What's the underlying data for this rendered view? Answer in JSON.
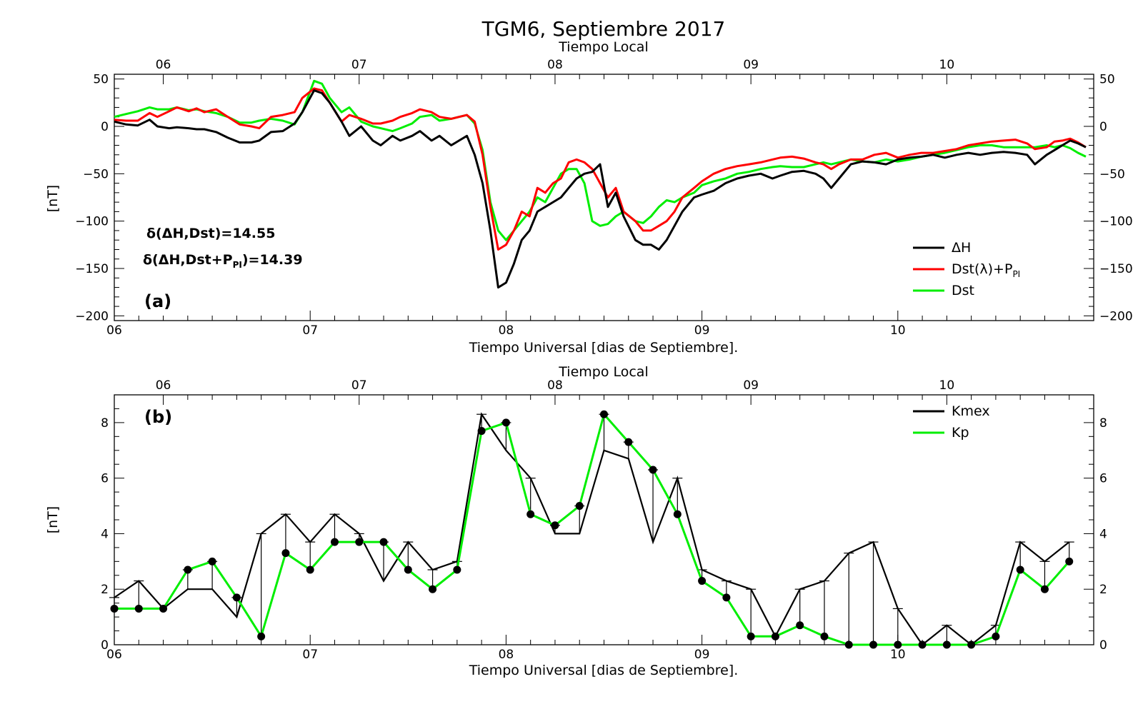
{
  "title": "TGM6, Septiembre 2017",
  "top_axis_label": "Tiempo Local",
  "bottom_axis_label": "Tiempo Universal [dias de Septiembre].",
  "ylabel": "[nT]",
  "x_ticks": [
    "06",
    "07",
    "08",
    "09",
    "10"
  ],
  "chart_data": [
    {
      "type": "line",
      "panel_label": "(a)",
      "ylabel": "[nT]",
      "xlabel": "Tiempo Universal [dias de Septiembre].",
      "top_xlabel": "Tiempo Local",
      "xlim": [
        6.0,
        11.0
      ],
      "ylim": [
        -205,
        55
      ],
      "y_ticks": [
        50,
        0,
        -50,
        -100,
        -150,
        -200
      ],
      "y_tick_labels": [
        "50",
        "0",
        "−50",
        "−100",
        "−150",
        "−200"
      ],
      "annotations": [
        "δ(ΔH,Dst)=14.55",
        "δ(ΔH,Dst+P",
        "PI",
        ")=14.39"
      ],
      "legend_position": "bottom-right",
      "series": [
        {
          "name": "ΔH",
          "color": "#000000",
          "x": [
            6.0,
            6.06,
            6.12,
            6.18,
            6.22,
            6.28,
            6.32,
            6.38,
            6.42,
            6.46,
            6.52,
            6.58,
            6.64,
            6.7,
            6.74,
            6.8,
            6.86,
            6.92,
            6.96,
            7.02,
            7.06,
            7.1,
            7.16,
            7.2,
            7.26,
            7.32,
            7.36,
            7.42,
            7.46,
            7.52,
            7.56,
            7.62,
            7.66,
            7.72,
            7.76,
            7.8,
            7.84,
            7.88,
            7.92,
            7.96,
            8.0,
            8.04,
            8.08,
            8.12,
            8.16,
            8.2,
            8.24,
            8.28,
            8.32,
            8.36,
            8.4,
            8.44,
            8.48,
            8.52,
            8.56,
            8.6,
            8.66,
            8.7,
            8.74,
            8.78,
            8.82,
            8.86,
            8.9,
            8.96,
            9.0,
            9.06,
            9.12,
            9.18,
            9.24,
            9.3,
            9.36,
            9.4,
            9.46,
            9.52,
            9.58,
            9.62,
            9.66,
            9.7,
            9.76,
            9.82,
            9.88,
            9.94,
            10.0,
            10.06,
            10.12,
            10.18,
            10.24,
            10.3,
            10.36,
            10.42,
            10.48,
            10.54,
            10.6,
            10.66,
            10.7,
            10.76,
            10.8,
            10.84,
            10.88,
            10.92,
            10.96
          ],
          "values": [
            5,
            2,
            1,
            7,
            0,
            -2,
            -1,
            -2,
            -3,
            -3,
            -6,
            -12,
            -17,
            -17,
            -15,
            -6,
            -5,
            3,
            15,
            38,
            35,
            25,
            5,
            -10,
            0,
            -15,
            -20,
            -10,
            -15,
            -10,
            -5,
            -15,
            -10,
            -20,
            -15,
            -10,
            -30,
            -60,
            -110,
            -170,
            -165,
            -145,
            -120,
            -110,
            -90,
            -85,
            -80,
            -75,
            -65,
            -55,
            -50,
            -48,
            -40,
            -85,
            -70,
            -95,
            -120,
            -125,
            -125,
            -130,
            -120,
            -105,
            -90,
            -75,
            -72,
            -68,
            -60,
            -55,
            -52,
            -50,
            -55,
            -52,
            -48,
            -47,
            -50,
            -55,
            -65,
            -55,
            -40,
            -37,
            -38,
            -40,
            -35,
            -33,
            -32,
            -30,
            -33,
            -30,
            -28,
            -30,
            -28,
            -27,
            -28,
            -30,
            -40,
            -30,
            -25,
            -20,
            -15,
            -18,
            -22
          ]
        },
        {
          "name": "Dst(λ)+P",
          "name_subscript": "PI",
          "color": "#ff0000",
          "x": [
            6.0,
            6.06,
            6.12,
            6.18,
            6.22,
            6.28,
            6.32,
            6.38,
            6.42,
            6.46,
            6.52,
            6.58,
            6.64,
            6.7,
            6.74,
            6.8,
            6.86,
            6.92,
            6.96,
            7.02,
            7.06,
            7.1,
            7.16,
            7.2,
            7.26,
            7.32,
            7.36,
            7.42,
            7.46,
            7.52,
            7.56,
            7.62,
            7.66,
            7.72,
            7.76,
            7.8,
            7.84,
            7.88,
            7.92,
            7.96,
            8.0,
            8.04,
            8.08,
            8.12,
            8.16,
            8.2,
            8.24,
            8.28,
            8.32,
            8.36,
            8.4,
            8.44,
            8.48,
            8.52,
            8.56,
            8.6,
            8.66,
            8.7,
            8.74,
            8.78,
            8.82,
            8.86,
            8.9,
            8.96,
            9.0,
            9.06,
            9.12,
            9.18,
            9.24,
            9.3,
            9.36,
            9.4,
            9.46,
            9.52,
            9.58,
            9.62,
            9.66,
            9.7,
            9.76,
            9.82,
            9.88,
            9.94,
            10.0,
            10.06,
            10.12,
            10.18,
            10.24,
            10.3,
            10.36,
            10.42,
            10.48,
            10.54,
            10.6,
            10.66,
            10.7,
            10.76,
            10.8,
            10.84,
            10.88,
            10.92,
            10.96
          ],
          "values": [
            7,
            6,
            6,
            14,
            10,
            16,
            20,
            16,
            19,
            15,
            18,
            10,
            2,
            0,
            -2,
            10,
            12,
            15,
            30,
            40,
            38,
            25,
            5,
            12,
            8,
            3,
            3,
            6,
            10,
            14,
            18,
            15,
            10,
            8,
            10,
            12,
            5,
            -30,
            -85,
            -130,
            -125,
            -110,
            -90,
            -95,
            -65,
            -70,
            -60,
            -55,
            -38,
            -35,
            -38,
            -45,
            -60,
            -75,
            -65,
            -90,
            -100,
            -110,
            -110,
            -105,
            -100,
            -90,
            -75,
            -65,
            -58,
            -50,
            -45,
            -42,
            -40,
            -38,
            -35,
            -33,
            -32,
            -34,
            -38,
            -40,
            -45,
            -40,
            -35,
            -35,
            -30,
            -28,
            -33,
            -30,
            -28,
            -28,
            -26,
            -24,
            -20,
            -18,
            -16,
            -15,
            -14,
            -18,
            -24,
            -22,
            -16,
            -15,
            -13,
            -17,
            -22
          ]
        },
        {
          "name": "Dst",
          "color": "#00ee00",
          "x": [
            6.0,
            6.06,
            6.12,
            6.18,
            6.22,
            6.28,
            6.32,
            6.38,
            6.42,
            6.46,
            6.52,
            6.58,
            6.64,
            6.7,
            6.74,
            6.8,
            6.86,
            6.92,
            6.96,
            7.02,
            7.06,
            7.1,
            7.16,
            7.2,
            7.26,
            7.32,
            7.36,
            7.42,
            7.46,
            7.52,
            7.56,
            7.62,
            7.66,
            7.72,
            7.76,
            7.8,
            7.84,
            7.88,
            7.92,
            7.96,
            8.0,
            8.04,
            8.08,
            8.12,
            8.16,
            8.2,
            8.24,
            8.28,
            8.32,
            8.36,
            8.4,
            8.44,
            8.48,
            8.52,
            8.56,
            8.6,
            8.66,
            8.7,
            8.74,
            8.78,
            8.82,
            8.86,
            8.9,
            8.96,
            9.0,
            9.06,
            9.12,
            9.18,
            9.24,
            9.3,
            9.36,
            9.4,
            9.46,
            9.52,
            9.58,
            9.62,
            9.66,
            9.7,
            9.76,
            9.82,
            9.88,
            9.94,
            10.0,
            10.06,
            10.12,
            10.18,
            10.24,
            10.3,
            10.36,
            10.42,
            10.48,
            10.54,
            10.6,
            10.66,
            10.7,
            10.76,
            10.8,
            10.84,
            10.88,
            10.92,
            10.96
          ],
          "values": [
            10,
            13,
            16,
            20,
            18,
            18,
            20,
            17,
            18,
            16,
            14,
            10,
            4,
            4,
            6,
            8,
            6,
            2,
            15,
            48,
            45,
            30,
            15,
            20,
            5,
            0,
            -2,
            -5,
            -2,
            3,
            10,
            12,
            6,
            8,
            10,
            12,
            3,
            -25,
            -80,
            -110,
            -120,
            -110,
            -100,
            -90,
            -75,
            -80,
            -65,
            -50,
            -45,
            -45,
            -60,
            -100,
            -105,
            -103,
            -95,
            -90,
            -100,
            -102,
            -95,
            -85,
            -78,
            -80,
            -75,
            -70,
            -62,
            -58,
            -55,
            -50,
            -48,
            -45,
            -43,
            -42,
            -43,
            -43,
            -40,
            -38,
            -40,
            -38,
            -35,
            -37,
            -38,
            -35,
            -37,
            -35,
            -32,
            -30,
            -28,
            -25,
            -22,
            -20,
            -20,
            -22,
            -22,
            -22,
            -22,
            -20,
            -22,
            -20,
            -23,
            -28,
            -32
          ]
        }
      ]
    },
    {
      "type": "line",
      "panel_label": "(b)",
      "ylabel": "[nT]",
      "xlabel": "Tiempo Universal [dias de Septiembre].",
      "top_xlabel": "Tiempo Local",
      "xlim": [
        6.0,
        11.0
      ],
      "ylim": [
        0,
        9
      ],
      "y_ticks": [
        0,
        2,
        4,
        6,
        8
      ],
      "y_tick_labels": [
        "0",
        "2",
        "4",
        "6",
        "8"
      ],
      "legend_position": "top-right",
      "series": [
        {
          "name": "Kmex",
          "color": "#000000",
          "x": [
            6.0,
            6.125,
            6.25,
            6.375,
            6.5,
            6.625,
            6.75,
            6.875,
            7.0,
            7.125,
            7.25,
            7.375,
            7.5,
            7.625,
            7.75,
            7.875,
            8.0,
            8.125,
            8.25,
            8.375,
            8.5,
            8.625,
            8.75,
            8.875,
            9.0,
            9.125,
            9.25,
            9.375,
            9.5,
            9.625,
            9.75,
            9.875,
            10.0,
            10.125,
            10.25,
            10.375,
            10.5,
            10.625,
            10.75,
            10.875
          ],
          "values": [
            1.7,
            2.3,
            1.3,
            2.0,
            2.0,
            1.0,
            4.0,
            4.7,
            3.7,
            4.7,
            4.0,
            2.3,
            3.7,
            2.7,
            3.0,
            8.3,
            7.0,
            6.0,
            4.0,
            4.0,
            7.0,
            6.7,
            3.7,
            6.0,
            2.7,
            2.3,
            2.0,
            0.3,
            2.0,
            2.3,
            3.3,
            3.7,
            1.3,
            0.0,
            0.7,
            0.0,
            0.7,
            3.7,
            3.0,
            3.7
          ]
        },
        {
          "name": "Kp",
          "color": "#00ee00",
          "x": [
            6.0,
            6.125,
            6.25,
            6.375,
            6.5,
            6.625,
            6.75,
            6.875,
            7.0,
            7.125,
            7.25,
            7.375,
            7.5,
            7.625,
            7.75,
            7.875,
            8.0,
            8.125,
            8.25,
            8.375,
            8.5,
            8.625,
            8.75,
            8.875,
            9.0,
            9.125,
            9.25,
            9.375,
            9.5,
            9.625,
            9.75,
            9.875,
            10.0,
            10.125,
            10.25,
            10.375,
            10.5,
            10.625,
            10.75,
            10.875
          ],
          "values": [
            1.3,
            1.3,
            1.3,
            2.7,
            3.0,
            1.7,
            0.3,
            3.3,
            2.7,
            3.7,
            3.7,
            3.7,
            2.7,
            2.0,
            2.7,
            7.7,
            8.0,
            4.7,
            4.3,
            5.0,
            8.3,
            7.3,
            6.3,
            4.7,
            2.3,
            1.7,
            0.3,
            0.3,
            0.7,
            0.3,
            0.0,
            0.0,
            0.0,
            0.0,
            0.0,
            0.0,
            0.3,
            2.7,
            2.0,
            3.0
          ]
        }
      ]
    }
  ]
}
